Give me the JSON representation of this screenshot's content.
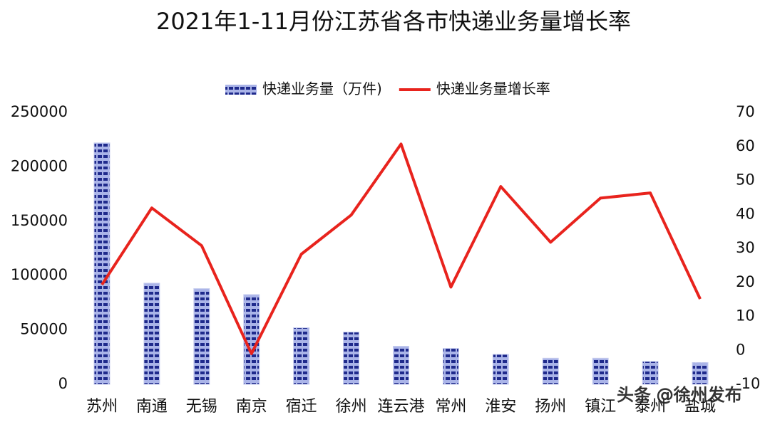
{
  "chart_data": {
    "type": "bar-line",
    "title": "2021年1-11月份江苏省各市快递业务量增长率",
    "categories": [
      "苏州",
      "南通",
      "无锡",
      "南京",
      "宿迁",
      "徐州",
      "连云港",
      "常州",
      "淮安",
      "扬州",
      "镇江",
      "泰州",
      "盐城"
    ],
    "series": [
      {
        "name": "快递业务量（万件)",
        "type": "bar",
        "axis": "y",
        "color": "#1f2a8c",
        "values": [
          222000,
          93000,
          88000,
          82500,
          52000,
          48000,
          35000,
          33000,
          27500,
          24000,
          24000,
          21000,
          20000
        ]
      },
      {
        "name": "快递业务量增长率",
        "type": "line",
        "axis": "y2",
        "color": "#e8231d",
        "values": [
          19.3,
          41.9,
          30.8,
          -1,
          28.3,
          39.8,
          60.7,
          18.6,
          48.2,
          31.8,
          44.8,
          46.3,
          15.1
        ]
      }
    ],
    "ylim": [
      0,
      250000
    ],
    "yticks": [
      0,
      50000,
      100000,
      150000,
      200000,
      250000
    ],
    "y2lim": [
      -10,
      70
    ],
    "y2ticks": [
      -10,
      0,
      10,
      20,
      30,
      40,
      50,
      60,
      70
    ],
    "legend": "top",
    "annotations": [
      "头条 @徐州发布"
    ]
  }
}
